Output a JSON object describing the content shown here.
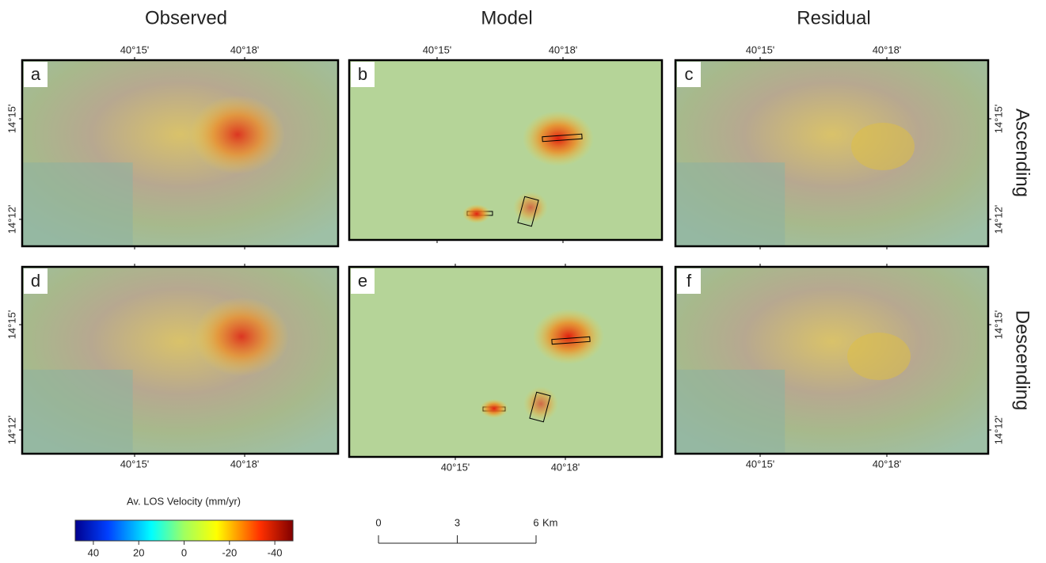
{
  "columns": [
    "Observed",
    "Model",
    "Residual"
  ],
  "rows": [
    "Ascending",
    "Descending"
  ],
  "panels": [
    {
      "letter": "a",
      "lon": [
        "40°15'",
        "40°18'"
      ],
      "lat": [
        "14°15'",
        "14°12'"
      ]
    },
    {
      "letter": "b",
      "lon": [
        "40°15'",
        "40°18'"
      ]
    },
    {
      "letter": "c",
      "lon": [
        "40°15'",
        "40°18'"
      ],
      "lat": [
        "14°15'",
        "14°12'"
      ]
    },
    {
      "letter": "d",
      "lon": [
        "40°15'",
        "40°18'"
      ],
      "lat": [
        "14°15'",
        "14°12'"
      ]
    },
    {
      "letter": "e",
      "lon": [
        "40°15'",
        "40°18'"
      ]
    },
    {
      "letter": "f",
      "lon": [
        "40°15'",
        "40°18'"
      ],
      "lat": [
        "14°15'",
        "14°12'"
      ]
    }
  ],
  "colorbar": {
    "title": "Av. LOS Velocity (mm/yr)",
    "lim": [
      48,
      -48
    ],
    "ticks": [
      40,
      20,
      0,
      -20,
      -40
    ]
  },
  "scalebar": {
    "ticks": [
      0,
      3,
      6
    ],
    "lim": [
      0,
      6
    ],
    "unit": "Km"
  }
}
